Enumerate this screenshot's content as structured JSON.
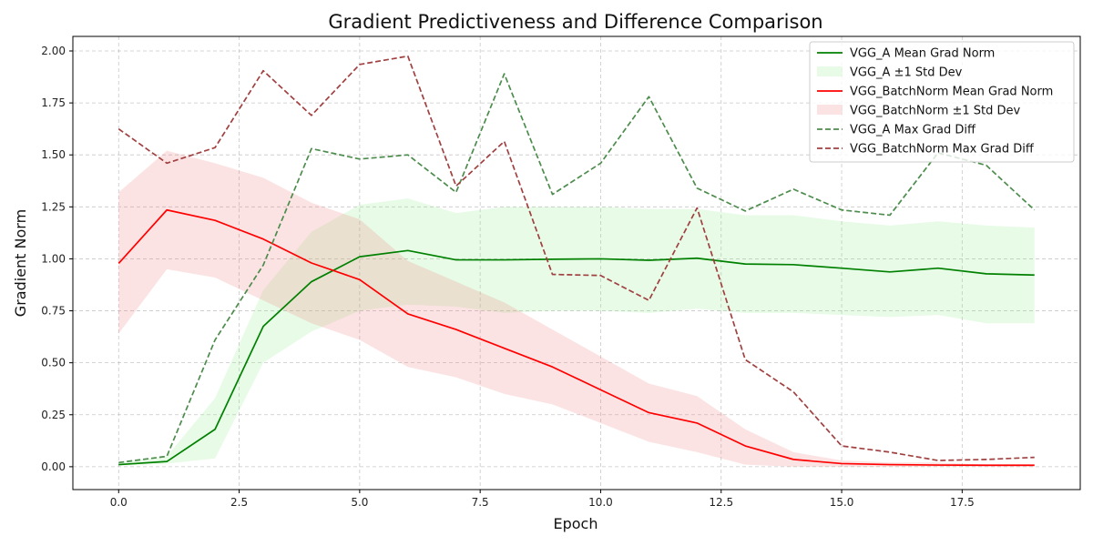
{
  "chart_data": {
    "type": "line",
    "title": "Gradient Predictiveness and Difference Comparison",
    "xlabel": "Epoch",
    "ylabel": "Gradient Norm",
    "xlim": [
      -0.95,
      19.95
    ],
    "ylim": [
      -0.11,
      2.07
    ],
    "xticks": [
      0,
      2.5,
      5,
      7.5,
      10,
      12.5,
      15,
      17.5
    ],
    "xtick_labels": [
      "0.0",
      "2.5",
      "5.0",
      "7.5",
      "10.0",
      "12.5",
      "15.0",
      "17.5"
    ],
    "yticks": [
      0,
      0.25,
      0.5,
      0.75,
      1.0,
      1.25,
      1.5,
      1.75,
      2.0
    ],
    "ytick_labels": [
      "0.00",
      "0.25",
      "0.50",
      "0.75",
      "1.00",
      "1.25",
      "1.50",
      "1.75",
      "2.00"
    ],
    "grid": true,
    "legend_position": "top-right",
    "x": [
      0,
      1,
      2,
      3,
      4,
      5,
      6,
      7,
      8,
      9,
      10,
      11,
      12,
      13,
      14,
      15,
      16,
      17,
      18,
      19
    ],
    "bands": [
      {
        "name": "VGG_A ±1 Std Dev",
        "color": "#90ee90",
        "opacity": 0.22,
        "lower": [
          0.005,
          0.015,
          0.04,
          0.5,
          0.65,
          0.75,
          0.78,
          0.77,
          0.74,
          0.75,
          0.75,
          0.74,
          0.76,
          0.74,
          0.74,
          0.73,
          0.72,
          0.73,
          0.69,
          0.69
        ],
        "upper": [
          0.02,
          0.05,
          0.33,
          0.85,
          1.13,
          1.26,
          1.29,
          1.22,
          1.25,
          1.25,
          1.25,
          1.24,
          1.24,
          1.21,
          1.21,
          1.18,
          1.16,
          1.18,
          1.16,
          1.15
        ]
      },
      {
        "name": "VGG_BatchNorm ±1 Std Dev",
        "color": "#f08080",
        "opacity": 0.22,
        "lower": [
          0.64,
          0.95,
          0.91,
          0.8,
          0.69,
          0.61,
          0.48,
          0.43,
          0.35,
          0.3,
          0.21,
          0.12,
          0.07,
          0.01,
          0.0,
          0.0,
          0.0,
          0.0,
          0.0,
          0.0
        ],
        "upper": [
          1.32,
          1.52,
          1.46,
          1.39,
          1.27,
          1.19,
          0.99,
          0.89,
          0.79,
          0.66,
          0.53,
          0.4,
          0.34,
          0.18,
          0.07,
          0.03,
          0.02,
          0.02,
          0.01,
          0.01
        ]
      }
    ],
    "series": [
      {
        "name": "VGG_A Mean Grad Norm",
        "color": "#008000",
        "dashed": false,
        "values": [
          0.01,
          0.025,
          0.18,
          0.675,
          0.89,
          1.01,
          1.04,
          0.995,
          0.995,
          0.998,
          1.0,
          0.993,
          1.003,
          0.975,
          0.972,
          0.955,
          0.937,
          0.955,
          0.928,
          0.922
        ]
      },
      {
        "name": "VGG_BatchNorm Mean Grad Norm",
        "color": "#ff0000",
        "dashed": false,
        "values": [
          0.978,
          1.235,
          1.185,
          1.095,
          0.98,
          0.9,
          0.735,
          0.66,
          0.57,
          0.48,
          0.37,
          0.26,
          0.21,
          0.1,
          0.035,
          0.015,
          0.01,
          0.008,
          0.007,
          0.007
        ]
      },
      {
        "name": "VGG_A Max Grad Diff",
        "color": "#4c8c4c",
        "dashed": true,
        "values": [
          0.02,
          0.05,
          0.61,
          0.97,
          1.53,
          1.48,
          1.5,
          1.32,
          1.89,
          1.31,
          1.46,
          1.78,
          1.34,
          1.23,
          1.335,
          1.235,
          1.21,
          1.51,
          1.45,
          1.235
        ]
      },
      {
        "name": "VGG_BatchNorm Max Grad Diff",
        "color": "#a04040",
        "dashed": true,
        "values": [
          1.625,
          1.46,
          1.535,
          1.905,
          1.69,
          1.935,
          1.975,
          1.35,
          1.565,
          0.925,
          0.92,
          0.8,
          1.245,
          0.515,
          0.36,
          0.1,
          0.07,
          0.03,
          0.035,
          0.045
        ]
      }
    ]
  }
}
